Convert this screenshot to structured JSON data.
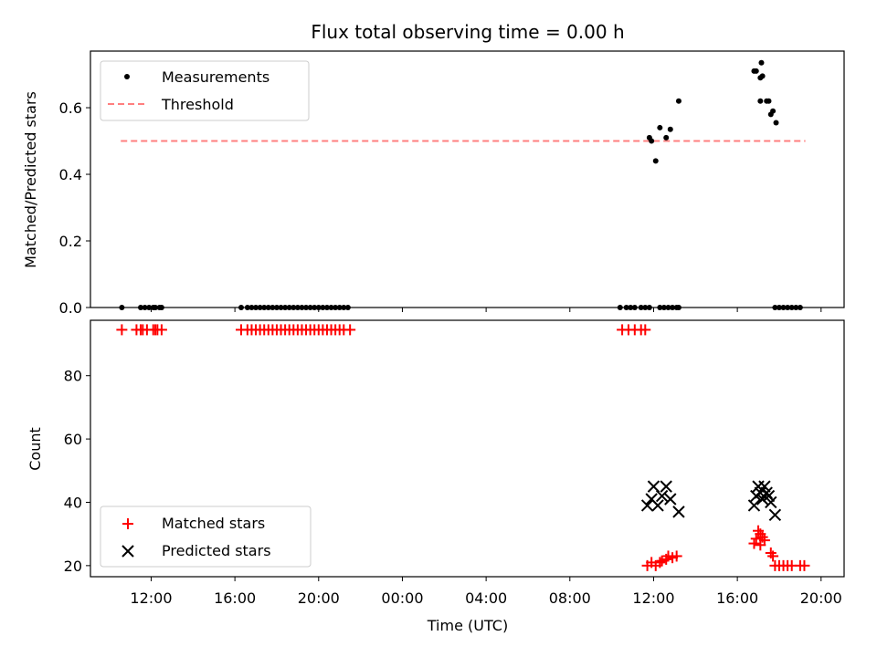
{
  "chart_data": [
    {
      "type": "scatter",
      "title": "Flux total observing time = 0.00 h",
      "xlabel": "",
      "ylabel": "Matched/Predicted stars",
      "ylim": [
        0,
        0.77
      ],
      "yticks": [
        "0.0",
        "0.2",
        "0.4",
        "0.6"
      ],
      "ytick_values": [
        0,
        0.2,
        0.4,
        0.6
      ],
      "x_unit": "hours since 00:00 UTC of first day",
      "legend": {
        "position": "top-left",
        "entries": [
          "Measurements",
          "Threshold"
        ]
      },
      "threshold": {
        "name": "Threshold",
        "value": 0.5,
        "x_range": [
          10.55,
          43.25
        ],
        "color": "#ff7f7f",
        "style": "dashed"
      },
      "series": [
        {
          "name": "Measurements",
          "marker": "dot",
          "color": "#000000",
          "points": [
            [
              10.6,
              0
            ],
            [
              11.5,
              0
            ],
            [
              11.7,
              0
            ],
            [
              11.9,
              0
            ],
            [
              12.1,
              0
            ],
            [
              12.2,
              0
            ],
            [
              12.4,
              0
            ],
            [
              12.5,
              0
            ],
            [
              16.3,
              0
            ],
            [
              16.6,
              0
            ],
            [
              16.8,
              0
            ],
            [
              17.0,
              0
            ],
            [
              17.2,
              0
            ],
            [
              17.4,
              0
            ],
            [
              17.6,
              0
            ],
            [
              17.8,
              0
            ],
            [
              18.0,
              0
            ],
            [
              18.2,
              0
            ],
            [
              18.4,
              0
            ],
            [
              18.6,
              0
            ],
            [
              18.8,
              0
            ],
            [
              19.0,
              0
            ],
            [
              19.2,
              0
            ],
            [
              19.4,
              0
            ],
            [
              19.6,
              0
            ],
            [
              19.8,
              0
            ],
            [
              20.0,
              0
            ],
            [
              20.2,
              0
            ],
            [
              20.4,
              0
            ],
            [
              20.6,
              0
            ],
            [
              20.8,
              0
            ],
            [
              21.0,
              0
            ],
            [
              21.2,
              0
            ],
            [
              21.4,
              0
            ],
            [
              34.4,
              0
            ],
            [
              34.7,
              0
            ],
            [
              34.9,
              0
            ],
            [
              35.1,
              0
            ],
            [
              35.4,
              0
            ],
            [
              35.6,
              0
            ],
            [
              35.8,
              0
            ],
            [
              36.3,
              0
            ],
            [
              36.5,
              0
            ],
            [
              36.7,
              0
            ],
            [
              36.9,
              0
            ],
            [
              37.1,
              0
            ],
            [
              37.2,
              0
            ],
            [
              41.8,
              0
            ],
            [
              42.0,
              0
            ],
            [
              42.2,
              0
            ],
            [
              42.4,
              0
            ],
            [
              42.6,
              0
            ],
            [
              42.8,
              0
            ],
            [
              43.0,
              0
            ],
            [
              35.8,
              0.51
            ],
            [
              35.9,
              0.5
            ],
            [
              36.1,
              0.44
            ],
            [
              36.3,
              0.54
            ],
            [
              36.6,
              0.51
            ],
            [
              36.8,
              0.535
            ],
            [
              37.2,
              0.62
            ],
            [
              40.8,
              0.71
            ],
            [
              40.9,
              0.71
            ],
            [
              41.1,
              0.69
            ],
            [
              41.15,
              0.735
            ],
            [
              41.2,
              0.695
            ],
            [
              41.1,
              0.62
            ],
            [
              41.4,
              0.62
            ],
            [
              41.5,
              0.62
            ],
            [
              41.6,
              0.58
            ],
            [
              41.7,
              0.59
            ],
            [
              41.85,
              0.555
            ]
          ]
        }
      ]
    },
    {
      "type": "scatter",
      "title": "",
      "xlabel": "Time (UTC)",
      "ylabel": "Count",
      "ylim": [
        16.5,
        97.5
      ],
      "yticks": [
        "20",
        "40",
        "60",
        "80"
      ],
      "ytick_values": [
        20,
        40,
        60,
        80
      ],
      "x_unit": "hours since 00:00 UTC of first day",
      "xlim": [
        9.1,
        45.1
      ],
      "xticks": [
        "12:00",
        "16:00",
        "20:00",
        "00:00",
        "04:00",
        "08:00",
        "12:00",
        "16:00",
        "20:00"
      ],
      "xtick_values": [
        12,
        16,
        20,
        24,
        28,
        32,
        36,
        40,
        44
      ],
      "legend": {
        "position": "bottom-left",
        "entries": [
          "Matched stars",
          "Predicted stars"
        ]
      },
      "series": [
        {
          "name": "Matched stars",
          "marker": "plus",
          "color": "#ff0000",
          "points": [
            [
              10.6,
              94.5
            ],
            [
              11.3,
              94.5
            ],
            [
              11.5,
              94.5
            ],
            [
              11.6,
              94.5
            ],
            [
              11.8,
              94.5
            ],
            [
              12.1,
              94.5
            ],
            [
              12.2,
              94.5
            ],
            [
              12.3,
              94.5
            ],
            [
              12.5,
              94.5
            ],
            [
              16.3,
              94.5
            ],
            [
              16.6,
              94.5
            ],
            [
              16.8,
              94.5
            ],
            [
              17.0,
              94.5
            ],
            [
              17.2,
              94.5
            ],
            [
              17.4,
              94.5
            ],
            [
              17.6,
              94.5
            ],
            [
              17.8,
              94.5
            ],
            [
              18.0,
              94.5
            ],
            [
              18.2,
              94.5
            ],
            [
              18.4,
              94.5
            ],
            [
              18.6,
              94.5
            ],
            [
              18.8,
              94.5
            ],
            [
              19.0,
              94.5
            ],
            [
              19.2,
              94.5
            ],
            [
              19.4,
              94.5
            ],
            [
              19.6,
              94.5
            ],
            [
              19.8,
              94.5
            ],
            [
              20.0,
              94.5
            ],
            [
              20.2,
              94.5
            ],
            [
              20.4,
              94.5
            ],
            [
              20.6,
              94.5
            ],
            [
              20.8,
              94.5
            ],
            [
              21.0,
              94.5
            ],
            [
              21.2,
              94.5
            ],
            [
              21.5,
              94.5
            ],
            [
              34.5,
              94.5
            ],
            [
              34.8,
              94.5
            ],
            [
              35.1,
              94.5
            ],
            [
              35.4,
              94.5
            ],
            [
              35.6,
              94.5
            ],
            [
              35.7,
              20
            ],
            [
              35.9,
              21
            ],
            [
              36.1,
              20
            ],
            [
              36.3,
              21
            ],
            [
              36.4,
              21.5
            ],
            [
              36.6,
              22
            ],
            [
              36.7,
              23
            ],
            [
              36.9,
              22.5
            ],
            [
              37.1,
              23
            ],
            [
              40.8,
              27
            ],
            [
              40.9,
              28.5
            ],
            [
              41.0,
              31
            ],
            [
              41.1,
              30
            ],
            [
              41.2,
              29
            ],
            [
              41.3,
              28
            ],
            [
              41.1,
              26.5
            ],
            [
              41.6,
              24
            ],
            [
              41.7,
              23
            ],
            [
              41.8,
              20
            ],
            [
              42.0,
              20
            ],
            [
              42.2,
              20
            ],
            [
              42.4,
              20
            ],
            [
              42.6,
              20
            ],
            [
              43.0,
              20
            ],
            [
              43.2,
              20
            ]
          ]
        },
        {
          "name": "Predicted stars",
          "marker": "x",
          "color": "#000000",
          "points": [
            [
              35.7,
              39
            ],
            [
              35.9,
              41
            ],
            [
              36.0,
              45
            ],
            [
              36.2,
              39
            ],
            [
              36.4,
              42
            ],
            [
              36.6,
              45
            ],
            [
              36.8,
              41
            ],
            [
              37.2,
              37
            ],
            [
              40.8,
              39
            ],
            [
              40.9,
              42
            ],
            [
              41.0,
              45
            ],
            [
              41.1,
              43
            ],
            [
              41.2,
              41
            ],
            [
              41.3,
              45
            ],
            [
              41.4,
              43
            ],
            [
              41.5,
              42
            ],
            [
              41.6,
              40
            ],
            [
              41.8,
              36
            ]
          ]
        }
      ]
    }
  ]
}
